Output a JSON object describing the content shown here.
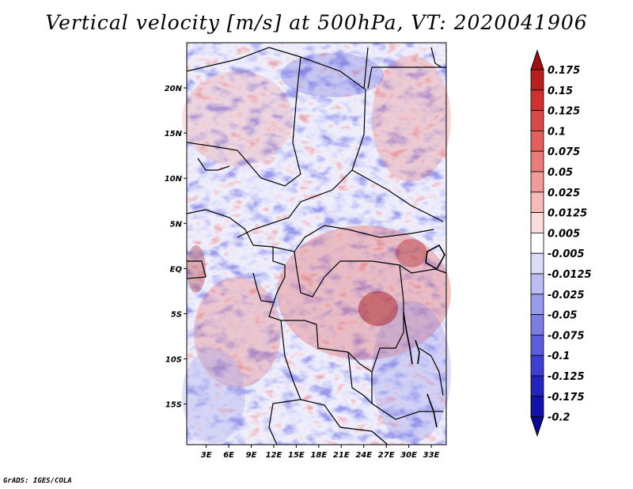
{
  "title": "Vertical velocity [m/s] at 500hPa, VT: 2020041906",
  "credit": "GrADS: IGES/COLA",
  "map": {
    "lat_labels": [
      "20N",
      "15N",
      "10N",
      "5N",
      "EQ",
      "5S",
      "10S",
      "15S"
    ],
    "lat_values": [
      20,
      15,
      10,
      5,
      0,
      -5,
      -10,
      -15
    ],
    "lon_labels": [
      "3E",
      "6E",
      "9E",
      "12E",
      "15E",
      "18E",
      "21E",
      "24E",
      "27E",
      "30E",
      "33E"
    ],
    "lon_values": [
      3,
      6,
      9,
      12,
      15,
      18,
      21,
      24,
      27,
      30,
      33
    ],
    "lat_range": [
      -19.5,
      25
    ],
    "lon_range": [
      0.4,
      35
    ]
  },
  "colorbar": {
    "levels": [
      "0.175",
      "0.15",
      "0.125",
      "0.1",
      "0.075",
      "0.05",
      "0.025",
      "0.0125",
      "0.005",
      "-0.005",
      "-0.0125",
      "-0.025",
      "-0.05",
      "-0.075",
      "-0.1",
      "-0.125",
      "-0.175",
      "-0.2"
    ],
    "colors": [
      "#a01010",
      "#b82020",
      "#cc3232",
      "#d84a4a",
      "#e06060",
      "#e87c7c",
      "#f09a9a",
      "#f6bcbc",
      "#fbdcdc",
      "#ffffff",
      "#dcdcf8",
      "#bcbcf2",
      "#9a9aea",
      "#7c7ce2",
      "#5e5edc",
      "#4040d0",
      "#2424bc",
      "#1212a6",
      "#0a0a96"
    ]
  }
}
